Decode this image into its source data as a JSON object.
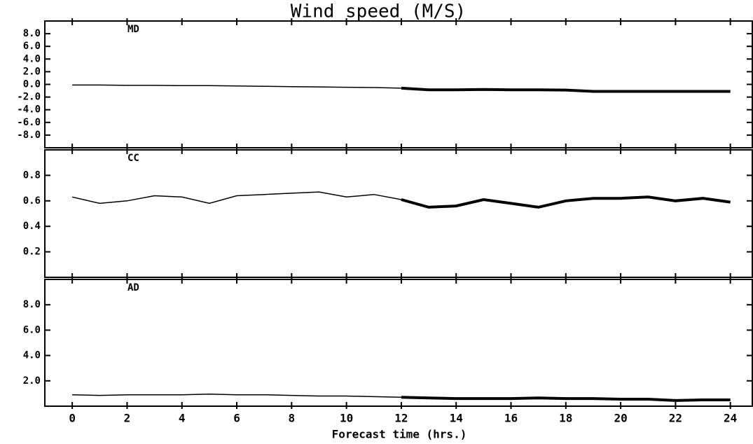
{
  "title": "Wind speed (M/S)",
  "x_label": "Forecast time (hrs.)",
  "chart_data": [
    {
      "type": "line",
      "label": "MD",
      "x": [
        0,
        1,
        2,
        3,
        4,
        5,
        6,
        7,
        8,
        9,
        10,
        11,
        12,
        13,
        14,
        15,
        16,
        17,
        18,
        19,
        20,
        21,
        22,
        23,
        24
      ],
      "xlim": [
        -1,
        24.8
      ],
      "ylim": [
        -10,
        10
      ],
      "yticks": [
        {
          "value": 8,
          "label": "8.0"
        },
        {
          "value": 6,
          "label": "6.0"
        },
        {
          "value": 4,
          "label": "4.0"
        },
        {
          "value": 2,
          "label": "2.0"
        },
        {
          "value": 0,
          "label": "0.0"
        },
        {
          "value": -2,
          "label": "-2.0"
        },
        {
          "value": -4,
          "label": "-4.0"
        },
        {
          "value": -6,
          "label": "-6.0"
        },
        {
          "value": -8,
          "label": "-8.0"
        }
      ],
      "series": [
        {
          "color": "#000000",
          "line_width": 1.5,
          "values": [
            -0.1,
            -0.1,
            -0.15,
            -0.15,
            -0.2,
            -0.2,
            -0.25,
            -0.3,
            -0.35,
            -0.4,
            -0.45,
            -0.5,
            -0.6,
            null,
            null,
            null,
            null,
            null,
            null,
            null,
            null,
            null,
            null,
            null,
            null
          ]
        },
        {
          "color": "#000000",
          "line_width": 4,
          "values": [
            null,
            null,
            null,
            null,
            null,
            null,
            null,
            null,
            null,
            null,
            null,
            null,
            -0.6,
            -0.85,
            -0.85,
            -0.8,
            -0.85,
            -0.85,
            -0.9,
            -1.1,
            -1.1,
            -1.1,
            -1.1,
            -1.1,
            -1.1
          ]
        }
      ]
    },
    {
      "type": "line",
      "label": "CC",
      "x": [
        0,
        1,
        2,
        3,
        4,
        5,
        6,
        7,
        8,
        9,
        10,
        11,
        12,
        13,
        14,
        15,
        16,
        17,
        18,
        19,
        20,
        21,
        22,
        23,
        24
      ],
      "xlim": [
        -1,
        24.8
      ],
      "ylim": [
        0,
        1
      ],
      "yticks": [
        {
          "value": 0.8,
          "label": "0.8"
        },
        {
          "value": 0.6,
          "label": "0.6"
        },
        {
          "value": 0.4,
          "label": "0.4"
        },
        {
          "value": 0.2,
          "label": "0.2"
        }
      ],
      "series": [
        {
          "color": "#000000",
          "line_width": 1.5,
          "values": [
            0.63,
            0.58,
            0.6,
            0.64,
            0.63,
            0.58,
            0.64,
            0.65,
            0.66,
            0.67,
            0.63,
            0.65,
            0.61,
            null,
            null,
            null,
            null,
            null,
            null,
            null,
            null,
            null,
            null,
            null,
            null
          ]
        },
        {
          "color": "#000000",
          "line_width": 4,
          "values": [
            null,
            null,
            null,
            null,
            null,
            null,
            null,
            null,
            null,
            null,
            null,
            null,
            0.61,
            0.55,
            0.56,
            0.61,
            0.58,
            0.55,
            0.6,
            0.62,
            0.62,
            0.63,
            0.6,
            0.62,
            0.59
          ]
        }
      ]
    },
    {
      "type": "line",
      "label": "AD",
      "x": [
        0,
        1,
        2,
        3,
        4,
        5,
        6,
        7,
        8,
        9,
        10,
        11,
        12,
        13,
        14,
        15,
        16,
        17,
        18,
        19,
        20,
        21,
        22,
        23,
        24
      ],
      "xlim": [
        -1,
        24.8
      ],
      "ylim": [
        0,
        10
      ],
      "yticks": [
        {
          "value": 8,
          "label": "8.0"
        },
        {
          "value": 6,
          "label": "6.0"
        },
        {
          "value": 4,
          "label": "4.0"
        },
        {
          "value": 2,
          "label": "2.0"
        }
      ],
      "xticks": [
        0,
        2,
        4,
        6,
        8,
        10,
        12,
        14,
        16,
        18,
        20,
        22,
        24
      ],
      "series": [
        {
          "color": "#000000",
          "line_width": 1.5,
          "values": [
            0.9,
            0.85,
            0.9,
            0.9,
            0.9,
            0.95,
            0.9,
            0.9,
            0.85,
            0.8,
            0.8,
            0.75,
            0.7,
            null,
            null,
            null,
            null,
            null,
            null,
            null,
            null,
            null,
            null,
            null,
            null
          ]
        },
        {
          "color": "#000000",
          "line_width": 4,
          "values": [
            null,
            null,
            null,
            null,
            null,
            null,
            null,
            null,
            null,
            null,
            null,
            null,
            0.7,
            0.65,
            0.6,
            0.6,
            0.6,
            0.65,
            0.6,
            0.6,
            0.55,
            0.55,
            0.45,
            0.5,
            0.5
          ]
        }
      ]
    }
  ]
}
